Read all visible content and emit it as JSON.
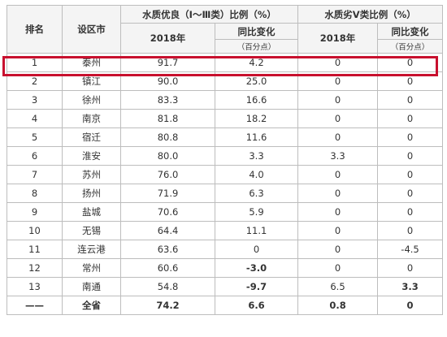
{
  "header": {
    "rank": "排名",
    "city": "设区市",
    "group1": "水质优良（Ⅰ～Ⅲ类）比例（%）",
    "group2": "水质劣Ⅴ类比例（%）",
    "year": "2018年",
    "change": "同比变化",
    "unit": "（百分点）"
  },
  "rows": [
    {
      "rank": "1",
      "city": "泰州",
      "good": "91.7",
      "good_change": "4.2",
      "bad": "0",
      "bad_change": "0"
    },
    {
      "rank": "2",
      "city": "镇江",
      "good": "90.0",
      "good_change": "25.0",
      "bad": "0",
      "bad_change": "0"
    },
    {
      "rank": "3",
      "city": "徐州",
      "good": "83.3",
      "good_change": "16.6",
      "bad": "0",
      "bad_change": "0"
    },
    {
      "rank": "4",
      "city": "南京",
      "good": "81.8",
      "good_change": "18.2",
      "bad": "0",
      "bad_change": "0"
    },
    {
      "rank": "5",
      "city": "宿迁",
      "good": "80.8",
      "good_change": "11.6",
      "bad": "0",
      "bad_change": "0"
    },
    {
      "rank": "6",
      "city": "淮安",
      "good": "80.0",
      "good_change": "3.3",
      "bad": "3.3",
      "bad_change": "0"
    },
    {
      "rank": "7",
      "city": "苏州",
      "good": "76.0",
      "good_change": "4.0",
      "bad": "0",
      "bad_change": "0"
    },
    {
      "rank": "8",
      "city": "扬州",
      "good": "71.9",
      "good_change": "6.3",
      "bad": "0",
      "bad_change": "0"
    },
    {
      "rank": "9",
      "city": "盐城",
      "good": "70.6",
      "good_change": "5.9",
      "bad": "0",
      "bad_change": "0"
    },
    {
      "rank": "10",
      "city": "无锡",
      "good": "64.4",
      "good_change": "11.1",
      "bad": "0",
      "bad_change": "0"
    },
    {
      "rank": "11",
      "city": "连云港",
      "good": "63.6",
      "good_change": "0",
      "bad": "0",
      "bad_change": "-4.5"
    },
    {
      "rank": "12",
      "city": "常州",
      "good": "60.6",
      "good_change": "-3.0",
      "bad": "0",
      "bad_change": "0"
    },
    {
      "rank": "13",
      "city": "南通",
      "good": "54.8",
      "good_change": "-9.7",
      "bad": "6.5",
      "bad_change": "3.3"
    }
  ],
  "total": {
    "rank": "——",
    "city": "全省",
    "good": "74.2",
    "good_change": "6.6",
    "bad": "0.8",
    "bad_change": "0"
  },
  "highlight_color": "#c8102e"
}
